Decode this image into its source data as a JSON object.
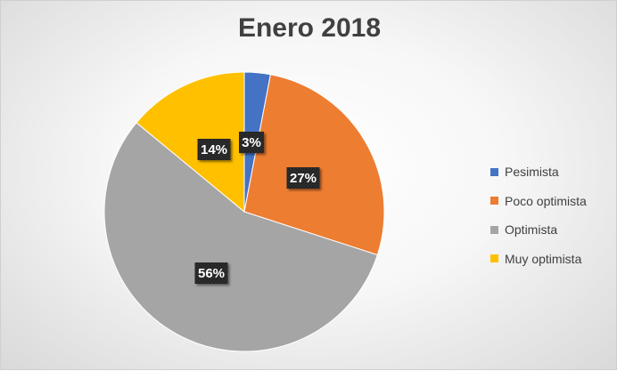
{
  "chart_data": {
    "type": "pie",
    "title": "Enero 2018",
    "categories": [
      "Pesimista",
      "Poco optimista",
      "Optimista",
      "Muy optimista"
    ],
    "values": [
      3,
      27,
      56,
      14
    ],
    "labels": [
      "3%",
      "27%",
      "56%",
      "14%"
    ],
    "colors": [
      "#4472C4",
      "#ED7D31",
      "#A5A5A5",
      "#FFC000"
    ],
    "legend_position": "right",
    "label_style": "dark boxes with white bold text"
  }
}
